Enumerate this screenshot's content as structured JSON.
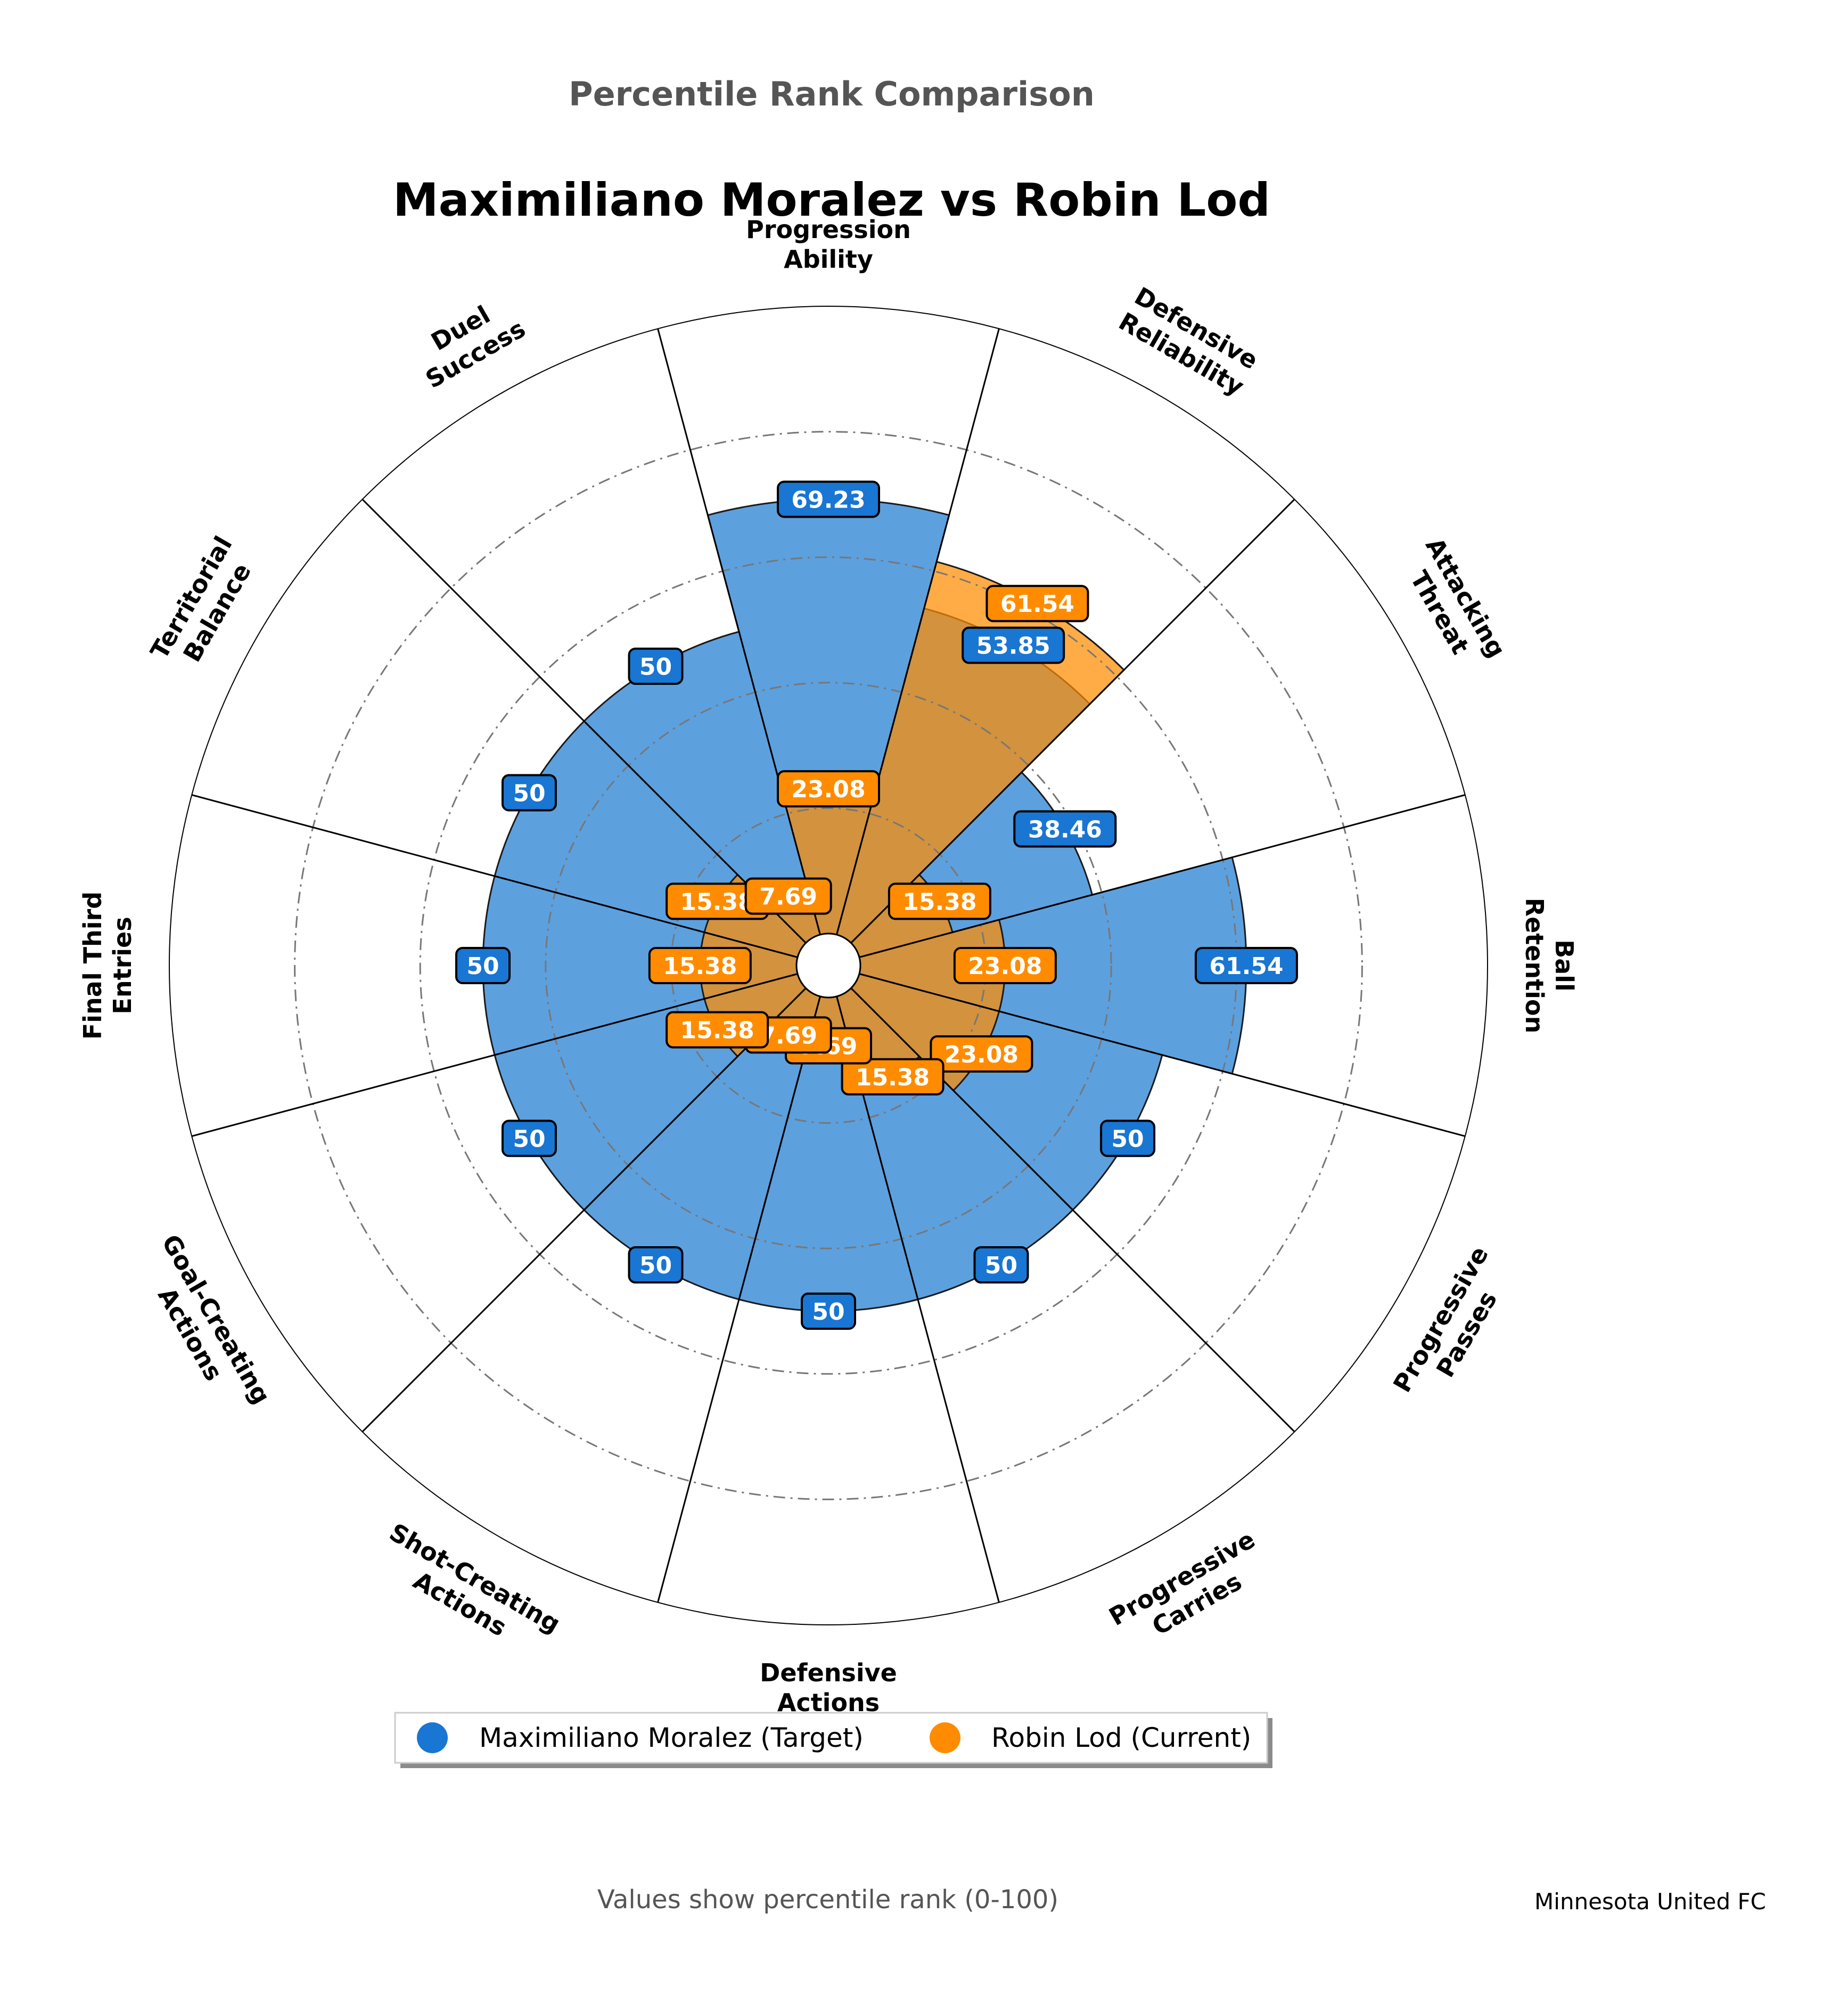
{
  "supertitle": "Percentile Rank Comparison",
  "footer_note": "Values show percentile rank (0-100)",
  "club": "Minnesota United FC",
  "colors": {
    "target": "#1976D2",
    "target_fill": "#5DA0DE",
    "current": "#FF8C00",
    "current_fill": "#FFB347",
    "overlap_fill": "#5E8AA8",
    "current_inner_fill": "#D1913F",
    "grid": "#777777",
    "background": "#ffffff"
  },
  "chart_data": {
    "type": "polar-bar",
    "title": "Maximiliano Moralez vs Robin Lod",
    "rlim": [
      0,
      100
    ],
    "grid": true,
    "legend_position": "bottom-center",
    "categories": [
      "Progression\nAbility",
      "Defensive\nReliability",
      "Attacking\nThreat",
      "Ball\nRetention",
      "Progressive\nPasses",
      "Progressive\nCarries",
      "Defensive\nActions",
      "Shot-Creating\nActions",
      "Goal-Creating\nActions",
      "Final Third\nEntries",
      "Territorial\nBalance",
      "Duel\nSuccess"
    ],
    "series": [
      {
        "name": "Maximiliano Moralez (Target)",
        "values": [
          69.23,
          53.85,
          38.46,
          61.54,
          50,
          50,
          50,
          50,
          50,
          50,
          50,
          50
        ],
        "labels": [
          "69.23",
          "53.85",
          "38.46",
          "61.54",
          "50",
          "50",
          "50",
          "50",
          "50",
          "50",
          "50",
          "50"
        ]
      },
      {
        "name": "Robin Lod (Current)",
        "values": [
          23.08,
          61.54,
          15.38,
          23.08,
          23.08,
          15.38,
          7.69,
          7.69,
          15.38,
          15.38,
          15.38,
          7.69
        ],
        "labels": [
          "23.08",
          "61.54",
          "15.38",
          "23.08",
          "23.08",
          "15.38",
          "7.69",
          "7.69",
          "15.38",
          "15.38",
          "15.38",
          "7.69"
        ]
      }
    ]
  }
}
